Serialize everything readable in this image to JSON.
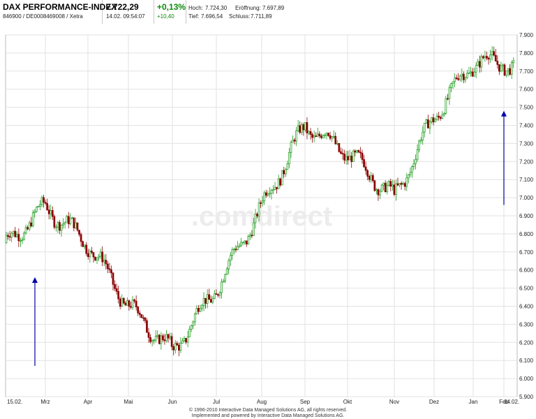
{
  "header": {
    "name": "DAX PERFORMANCE-INDEX",
    "ids": "846900 / DE0008469008 / Xetra",
    "price": "7.722,29",
    "datetime": "14.02. 09:54:07",
    "change_pct": "+0,13%",
    "change_abs": "+10,40",
    "hoch_label": "Hoch:",
    "hoch": "7.724,30",
    "eroeffnung_label": "Eröffnung:",
    "eroeffnung": "7.697,89",
    "tief_label": "Tief:",
    "tief": "7.696,54",
    "schluss_label": "Schluss:",
    "schluss": "7.711,89"
  },
  "watermark": ".comdirect",
  "footer": {
    "line1": "© 1996-2010 Interactive Data Managed Solutions AG, all rights reserved.",
    "line2": "Implemented and powered by Interactive Data Managed Solutions AG."
  },
  "colors": {
    "up": "#1a9a1a",
    "down": "#8b0000",
    "arrow": "#0000aa",
    "grid": "#e2e2e2"
  },
  "chart_data": {
    "type": "candlestick",
    "title": "DAX PERFORMANCE-INDEX",
    "ylim": [
      5900,
      7900
    ],
    "y_ticks": [
      "5.900",
      "6.000",
      "6.100",
      "6.200",
      "6.300",
      "6.400",
      "6.500",
      "6.600",
      "6.700",
      "6.800",
      "6.900",
      "7.000",
      "7.100",
      "7.200",
      "7.300",
      "7.400",
      "7.500",
      "7.600",
      "7.700",
      "7.800",
      "7.900"
    ],
    "x_ticks": [
      "15.02.",
      "Mrz",
      "Apr",
      "Mai",
      "Jun",
      "Jul",
      "Aug",
      "Sep",
      "Okt",
      "Nov",
      "Dez",
      "Jan",
      "Feb",
      "14.02."
    ],
    "grid": true,
    "close_path_monthly": [
      {
        "x": "15.02.",
        "y": 6750
      },
      {
        "x": "Mrz",
        "y": 6950
      },
      {
        "x": "Apr",
        "y": 6750
      },
      {
        "x": "Mai",
        "y": 6400
      },
      {
        "x": "Jun",
        "y": 6150
      },
      {
        "x": "Jul",
        "y": 6500
      },
      {
        "x": "Aug",
        "y": 6950
      },
      {
        "x": "Sep",
        "y": 7400
      },
      {
        "x": "Okt",
        "y": 7250
      },
      {
        "x": "Nov",
        "y": 7000
      },
      {
        "x": "Dez",
        "y": 7450
      },
      {
        "x": "Jan",
        "y": 7750
      },
      {
        "x": "Feb",
        "y": 7750
      },
      {
        "x": "14.02.",
        "y": 7722
      }
    ],
    "annotations": [
      {
        "type": "arrow-up",
        "x": "Mrz",
        "y_from": 6070,
        "y_to": 6560
      },
      {
        "type": "arrow-up",
        "x": "14.02.",
        "y_from": 6960,
        "y_to": 7480
      }
    ]
  }
}
